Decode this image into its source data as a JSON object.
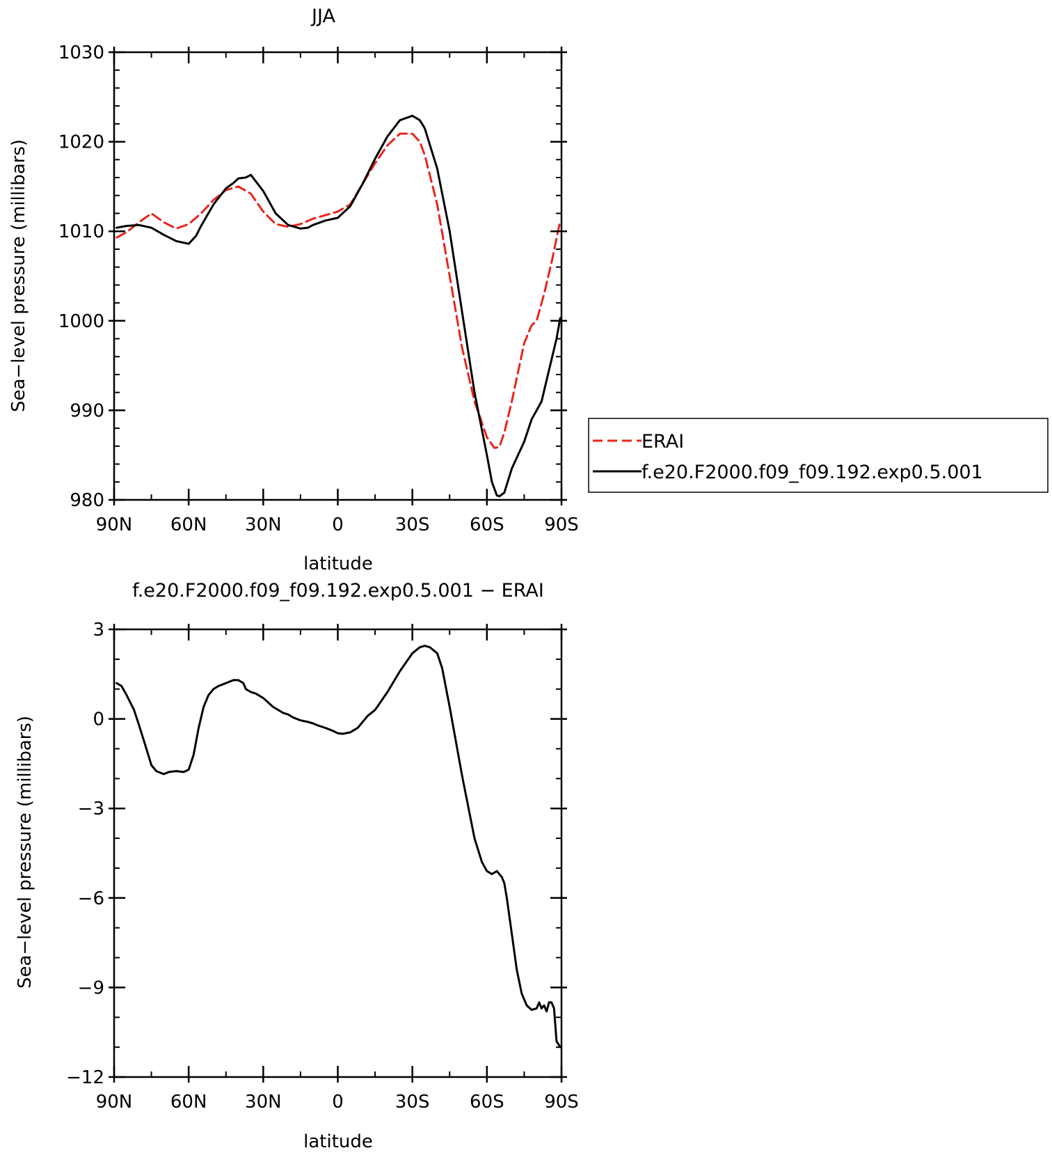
{
  "chart_data": [
    {
      "type": "line",
      "title": "JJA",
      "xlabel": "latitude",
      "ylabel": "Sea−level pressure (millibars)",
      "xlim": [
        90,
        -90
      ],
      "ylim": [
        980,
        1030
      ],
      "x_ticks": [
        90,
        60,
        30,
        0,
        -30,
        -60,
        -90
      ],
      "x_tick_labels": [
        "90N",
        "60N",
        "30N",
        "0",
        "30S",
        "60S",
        "90S"
      ],
      "y_ticks": [
        980,
        990,
        1000,
        1010,
        1020,
        1030
      ],
      "y_tick_labels": [
        "980",
        "990",
        "1000",
        "1010",
        "1020",
        "1030"
      ],
      "legend_position": "right",
      "series": [
        {
          "name": "ERAI",
          "color": "#e8241c",
          "style": "dashed",
          "x": [
            89,
            85,
            80,
            75,
            70,
            65,
            60,
            55,
            50,
            45,
            40,
            35,
            30,
            25,
            20,
            15,
            10,
            5,
            0,
            -5,
            -10,
            -15,
            -20,
            -25,
            -30,
            -33,
            -35,
            -40,
            -45,
            -50,
            -55,
            -60,
            -63,
            -65,
            -67,
            -70,
            -75,
            -78,
            -80,
            -83,
            -86,
            -89.5
          ],
          "y": [
            1009.3,
            1009.9,
            1011.0,
            1012.0,
            1011.0,
            1010.3,
            1010.8,
            1012.0,
            1013.5,
            1014.6,
            1015.0,
            1014.2,
            1012.2,
            1010.8,
            1010.5,
            1010.8,
            1011.4,
            1011.8,
            1012.2,
            1013.0,
            1015.3,
            1017.6,
            1019.6,
            1020.9,
            1020.9,
            1020.0,
            1018.5,
            1013.0,
            1005.0,
            997.0,
            991.0,
            987.0,
            985.8,
            985.9,
            987.5,
            991.0,
            997.5,
            999.5,
            1000.0,
            1003.0,
            1006.5,
            1011.2
          ]
        },
        {
          "name": "f.e20.F2000.f09_f09.192.exp0.5.001",
          "color": "#000000",
          "style": "solid",
          "x": [
            89,
            85,
            80,
            75,
            70,
            65,
            60,
            57,
            55,
            50,
            45,
            42,
            40,
            37,
            35,
            30,
            25,
            20,
            15,
            12,
            10,
            5,
            0,
            -5,
            -10,
            -15,
            -20,
            -25,
            -30,
            -33,
            -35,
            -40,
            -45,
            -50,
            -55,
            -60,
            -62,
            -64,
            -65,
            -67,
            -70,
            -75,
            -78,
            -80,
            -82,
            -85,
            -88,
            -89.5
          ],
          "y": [
            1010.4,
            1010.6,
            1010.7,
            1010.4,
            1009.6,
            1008.9,
            1008.6,
            1009.5,
            1010.6,
            1013.0,
            1014.8,
            1015.4,
            1015.9,
            1016.0,
            1016.3,
            1014.5,
            1012.0,
            1010.7,
            1010.3,
            1010.4,
            1010.7,
            1011.2,
            1011.5,
            1012.8,
            1015.3,
            1018.1,
            1020.6,
            1022.4,
            1022.9,
            1022.4,
            1021.5,
            1017.0,
            1010.0,
            1001.0,
            992.0,
            985.0,
            982.0,
            980.5,
            980.4,
            980.8,
            983.5,
            986.5,
            989.0,
            990.0,
            991.0,
            994.5,
            998.0,
            1000.3
          ]
        }
      ]
    },
    {
      "type": "line",
      "title": "f.e20.F2000.f09_f09.192.exp0.5.001 − ERAI",
      "xlabel": "latitude",
      "ylabel": "Sea−level pressure (millibars)",
      "xlim": [
        90,
        -90
      ],
      "ylim": [
        -12,
        3
      ],
      "x_ticks": [
        90,
        60,
        30,
        0,
        -30,
        -60,
        -90
      ],
      "x_tick_labels": [
        "90N",
        "60N",
        "30N",
        "0",
        "30S",
        "60S",
        "90S"
      ],
      "y_ticks": [
        -12,
        -9,
        -6,
        -3,
        0,
        3
      ],
      "y_tick_labels": [
        "−12",
        "−9",
        "−6",
        "−3",
        "0",
        "3"
      ],
      "series": [
        {
          "color": "#000000",
          "style": "solid",
          "x": [
            89,
            87,
            85,
            82,
            80,
            77,
            75,
            73,
            70,
            68,
            65,
            62,
            60,
            58,
            56,
            54,
            52,
            50,
            48,
            45,
            42,
            40,
            38,
            37,
            36,
            35,
            33,
            30,
            28,
            26,
            24,
            22,
            20,
            18,
            15,
            12,
            10,
            8,
            5,
            2,
            0,
            -2,
            -5,
            -8,
            -10,
            -12,
            -15,
            -20,
            -25,
            -30,
            -33,
            -35,
            -37,
            -40,
            -42,
            -45,
            -50,
            -55,
            -58,
            -60,
            -62,
            -63,
            -64,
            -65,
            -66,
            -67,
            -68,
            -70,
            -72,
            -74,
            -76,
            -78,
            -80,
            -81,
            -82,
            -83,
            -84,
            -85,
            -86,
            -87,
            -88,
            -89.5
          ],
          "y": [
            1.2,
            1.1,
            0.8,
            0.3,
            -0.2,
            -1.0,
            -1.55,
            -1.75,
            -1.85,
            -1.78,
            -1.75,
            -1.78,
            -1.7,
            -1.2,
            -0.3,
            0.4,
            0.8,
            1.0,
            1.1,
            1.2,
            1.3,
            1.3,
            1.2,
            1.0,
            0.95,
            0.9,
            0.85,
            0.7,
            0.55,
            0.4,
            0.3,
            0.2,
            0.15,
            0.05,
            -0.05,
            -0.1,
            -0.15,
            -0.22,
            -0.3,
            -0.4,
            -0.48,
            -0.5,
            -0.45,
            -0.3,
            -0.1,
            0.1,
            0.3,
            0.9,
            1.6,
            2.2,
            2.4,
            2.45,
            2.4,
            2.2,
            1.7,
            0.4,
            -1.9,
            -4.0,
            -4.8,
            -5.1,
            -5.2,
            -5.15,
            -5.1,
            -5.2,
            -5.3,
            -5.5,
            -6.0,
            -7.2,
            -8.4,
            -9.2,
            -9.6,
            -9.75,
            -9.7,
            -9.5,
            -9.7,
            -9.6,
            -9.8,
            -9.5,
            -9.5,
            -9.7,
            -10.8,
            -11.0
          ]
        }
      ]
    }
  ]
}
